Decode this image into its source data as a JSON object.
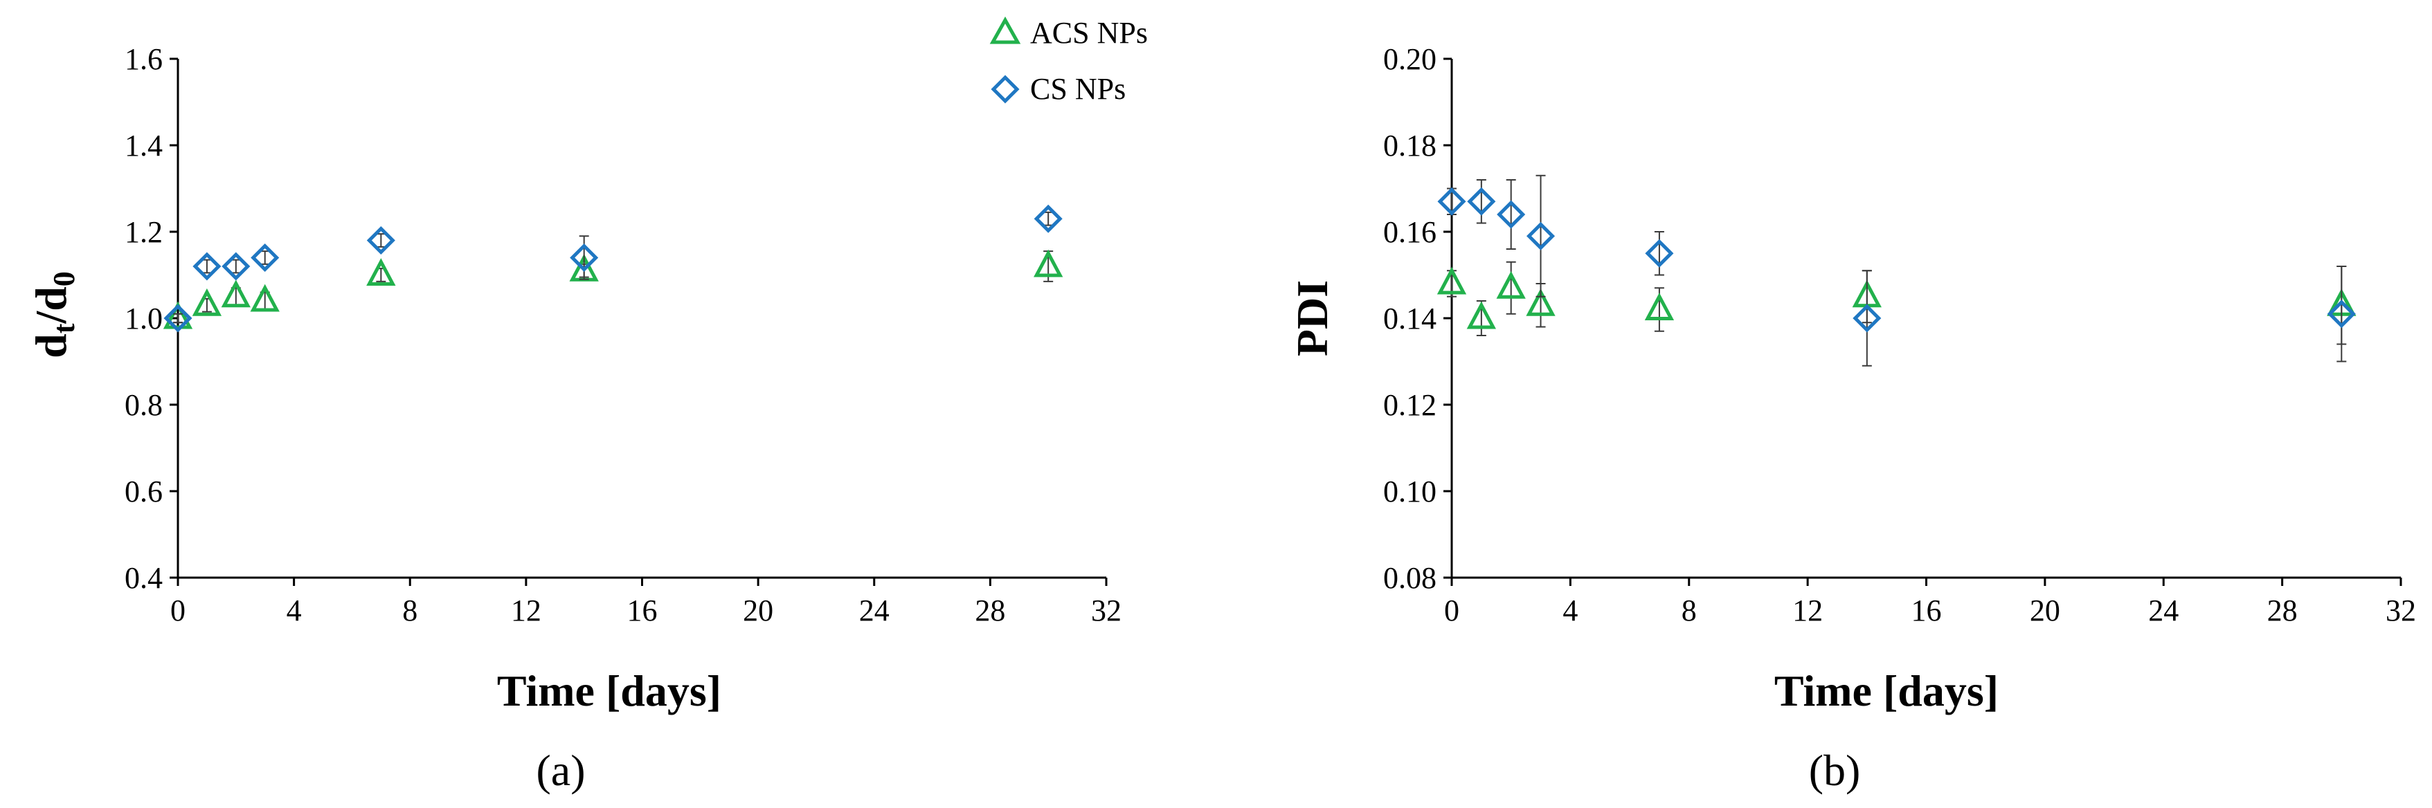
{
  "colors": {
    "acs": "#22b14c",
    "cs": "#1f77c2",
    "axis": "#000000",
    "errorbar": "#3a3a3a"
  },
  "legend": {
    "placement": "top-right of panel (a)",
    "items": [
      {
        "label": "ACS NPs",
        "marker": "triangle",
        "color": "#22b14c"
      },
      {
        "label": "CS NPs",
        "marker": "diamond",
        "color": "#1f77c2"
      }
    ]
  },
  "chart_data": [
    {
      "type": "scatter",
      "panel_label": "(a)",
      "xlabel": "Time [days]",
      "ylabel_main": "d",
      "ylabel_sub1": "t",
      "ylabel_mid": "/d",
      "ylabel_sub2": "0",
      "xlim": [
        0,
        32
      ],
      "ylim": [
        0.4,
        1.6
      ],
      "xticks": [
        "0",
        "4",
        "8",
        "12",
        "16",
        "20",
        "24",
        "28",
        "32"
      ],
      "yticks": [
        "0.4",
        "0.6",
        "0.8",
        "1.0",
        "1.2",
        "1.4",
        "1.6"
      ],
      "grid": false,
      "series": [
        {
          "name": "ACS NPs",
          "marker": "triangle",
          "color": "#22b14c",
          "x": [
            0,
            1,
            2,
            3,
            7,
            14,
            30
          ],
          "y": [
            1.0,
            1.03,
            1.05,
            1.04,
            1.1,
            1.11,
            1.12
          ],
          "err": [
            0.01,
            0.015,
            0.02,
            0.02,
            0.015,
            0.015,
            0.035
          ]
        },
        {
          "name": "CS NPs",
          "marker": "diamond",
          "color": "#1f77c2",
          "x": [
            0,
            1,
            2,
            3,
            7,
            14,
            30
          ],
          "y": [
            1.0,
            1.12,
            1.12,
            1.14,
            1.18,
            1.14,
            1.23
          ],
          "err": [
            0.01,
            0.015,
            0.015,
            0.015,
            0.015,
            0.05,
            0.015
          ]
        }
      ]
    },
    {
      "type": "scatter",
      "panel_label": "(b)",
      "xlabel": "Time [days]",
      "ylabel": "PDI",
      "xlim": [
        0,
        32
      ],
      "ylim": [
        0.08,
        0.2
      ],
      "xticks": [
        "0",
        "4",
        "8",
        "12",
        "16",
        "20",
        "24",
        "28",
        "32"
      ],
      "yticks": [
        "0.08",
        "0.10",
        "0.12",
        "0.14",
        "0.16",
        "0.18",
        "0.20"
      ],
      "grid": false,
      "series": [
        {
          "name": "ACS NPs",
          "marker": "triangle",
          "color": "#22b14c",
          "x": [
            0,
            1,
            2,
            3,
            7,
            14,
            30
          ],
          "y": [
            0.148,
            0.14,
            0.147,
            0.143,
            0.142,
            0.145,
            0.143
          ],
          "err": [
            0.003,
            0.004,
            0.006,
            0.005,
            0.005,
            0.006,
            0.009
          ]
        },
        {
          "name": "CS NPs",
          "marker": "diamond",
          "color": "#1f77c2",
          "x": [
            0,
            1,
            2,
            3,
            7,
            14,
            30
          ],
          "y": [
            0.167,
            0.167,
            0.164,
            0.159,
            0.155,
            0.14,
            0.141
          ],
          "err": [
            0.003,
            0.005,
            0.008,
            0.014,
            0.005,
            0.011,
            0.011
          ]
        }
      ]
    }
  ]
}
